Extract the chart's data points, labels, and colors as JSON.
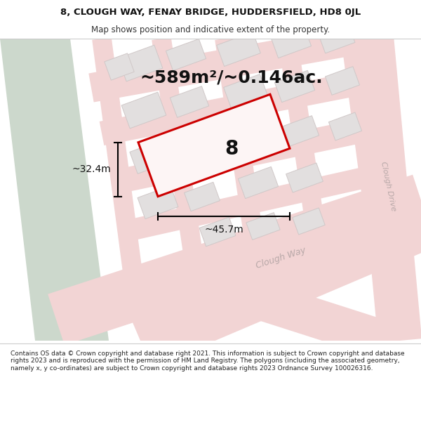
{
  "title_line1": "8, CLOUGH WAY, FENAY BRIDGE, HUDDERSFIELD, HD8 0JL",
  "title_line2": "Map shows position and indicative extent of the property.",
  "area_text": "~589m²/~0.146ac.",
  "number_label": "8",
  "dim_width": "~45.7m",
  "dim_height": "~32.4m",
  "footer_text": "Contains OS data © Crown copyright and database right 2021. This information is subject to Crown copyright and database rights 2023 and is reproduced with the permission of HM Land Registry. The polygons (including the associated geometry, namely x, y co-ordinates) are subject to Crown copyright and database rights 2023 Ordnance Survey 100026316.",
  "map_bg": "#f7f6f4",
  "road_color": "#f2d4d4",
  "road_edge_color": "#e8b8b8",
  "building_color": "#e2dfdf",
  "building_edge": "#d0c8c8",
  "highlight_color": "#cc0000",
  "highlight_fill": "#fdf5f5",
  "green_color": "#ccd8cc",
  "road_label_color": "#b8a8a8",
  "title_bg": "#ffffff",
  "footer_bg": "#ffffff",
  "sep_color": "#cccccc",
  "title_fontsize": 9.5,
  "subtitle_fontsize": 8.5,
  "area_fontsize": 18,
  "label_fontsize": 10,
  "footer_fontsize": 6.5,
  "number_fontsize": 20,
  "road_label_fontsize": 8
}
